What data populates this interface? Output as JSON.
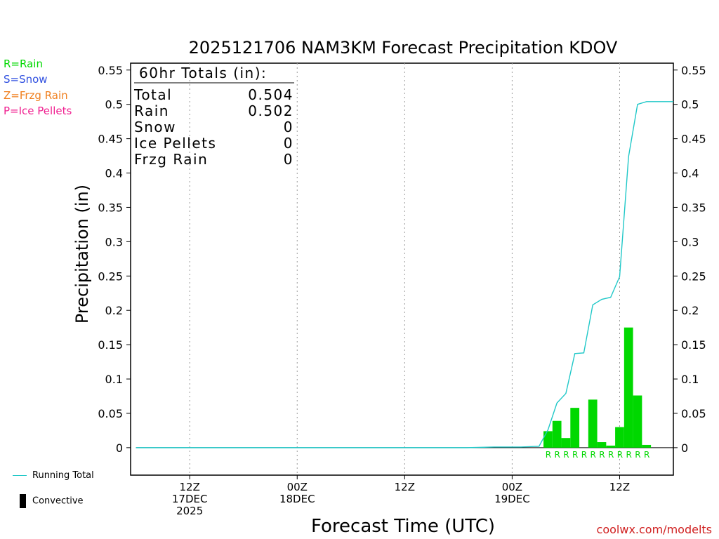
{
  "chart_data": {
    "type": "bar",
    "title": "2025121706 NAM3KM Forecast Precipitation KDOV",
    "xlabel": "Forecast Time (UTC)",
    "ylabel": "Precipitation (in)",
    "ylim": [
      -0.04,
      0.56
    ],
    "yticks": [
      0,
      0.05,
      0.1,
      0.15,
      0.2,
      0.25,
      0.3,
      0.35,
      0.4,
      0.45,
      0.5,
      0.55
    ],
    "ytick_labels": [
      "0",
      "0.05",
      "0.1",
      "0.15",
      "0.2",
      "0.25",
      "0.3",
      "0.35",
      "0.4",
      "0.45",
      "0.5",
      "0.55"
    ],
    "xlim_hours": [
      -0.6,
      60
    ],
    "xticks": [
      {
        "hour": 6,
        "lines": [
          "12Z",
          "17DEC",
          "2025"
        ]
      },
      {
        "hour": 18,
        "lines": [
          "00Z",
          "18DEC"
        ]
      },
      {
        "hour": 30,
        "lines": [
          "12Z"
        ]
      },
      {
        "hour": 42,
        "lines": [
          "00Z",
          "19DEC"
        ]
      },
      {
        "hour": 54,
        "lines": [
          "12Z"
        ]
      }
    ],
    "bars": {
      "name": "Rain",
      "hours": [
        46,
        47,
        48,
        49,
        50,
        51,
        52,
        53,
        54,
        55,
        56,
        57
      ],
      "values": [
        0.024,
        0.039,
        0.014,
        0.058,
        0.0,
        0.07,
        0.008,
        0.003,
        0.03,
        0.175,
        0.076,
        0.004
      ],
      "type_labels": [
        "R",
        "R",
        "R",
        "R",
        "R",
        "R",
        "R",
        "R",
        "R",
        "R",
        "R",
        "R"
      ],
      "color": "#00d800"
    },
    "running_total": {
      "name": "Running Total",
      "color": "#20c8c8",
      "points": [
        [
          0,
          0
        ],
        [
          37,
          0
        ],
        [
          40,
          0.001
        ],
        [
          43,
          0.001
        ],
        [
          45,
          0.002
        ],
        [
          46,
          0.026
        ],
        [
          47,
          0.065
        ],
        [
          48,
          0.079
        ],
        [
          49,
          0.137
        ],
        [
          50,
          0.138
        ],
        [
          51,
          0.208
        ],
        [
          52,
          0.216
        ],
        [
          53,
          0.219
        ],
        [
          54,
          0.249
        ],
        [
          55,
          0.424
        ],
        [
          56,
          0.5
        ],
        [
          57,
          0.504
        ],
        [
          60,
          0.504
        ]
      ]
    },
    "totals_box": {
      "heading": "60hr Totals (in):",
      "rows": [
        {
          "label": "Total",
          "value": "0.504"
        },
        {
          "label": "Rain",
          "value": "0.502"
        },
        {
          "label": "Snow",
          "value": "0"
        },
        {
          "label": "Ice Pellets",
          "value": "0"
        },
        {
          "label": "Frzg Rain",
          "value": "0"
        }
      ]
    }
  },
  "legend": {
    "rain": "R=Rain",
    "snow": "S=Snow",
    "frzg": "Z=Frzg Rain",
    "ice": "P=Ice Pellets",
    "rain_color": "#00d800",
    "snow_color": "#3050e0",
    "frzg_color": "#f08020",
    "ice_color": "#f02090"
  },
  "footer": {
    "running_total": "Running Total",
    "convective": "Convective",
    "credit": "coolwx.com/modelts"
  }
}
